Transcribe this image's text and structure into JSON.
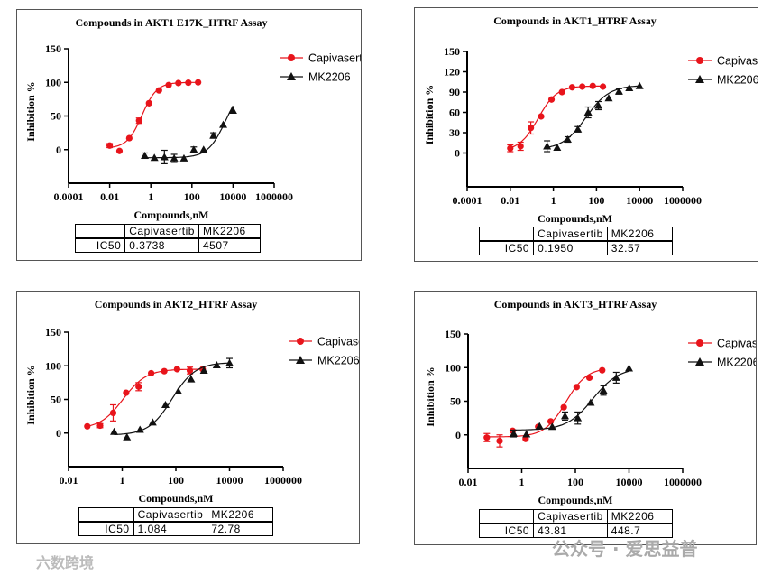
{
  "colors": {
    "capivasertib": "#e8141b",
    "mk2206": "#111111"
  },
  "watermarks": {
    "left": "六数跨境",
    "right": "公众号 · 爱思益普"
  },
  "chart_data": [
    {
      "type": "scatter",
      "title": "Compounds in AKT1 E17K_HTRF Assay",
      "xlabel": "Compounds,nM",
      "ylabel": "Inhibition %",
      "xscale": "log",
      "xlim": [
        0.0001,
        1000000
      ],
      "x_ticks": [
        "0.0001",
        "0.01",
        "1",
        "100",
        "10000",
        "1000000"
      ],
      "ylim": [
        -50,
        150
      ],
      "y_ticks": [
        "0",
        "50",
        "100",
        "150"
      ],
      "legend": "top-right",
      "series": [
        {
          "name": "Capivasertib",
          "marker": "circle",
          "x": [
            0.01,
            0.03,
            0.09,
            0.27,
            0.82,
            2.5,
            7.4,
            22,
            67,
            200
          ],
          "y": [
            6,
            -2,
            17,
            43,
            69,
            88,
            96,
            99,
            99.5,
            100
          ],
          "err": [
            3,
            1,
            2,
            4,
            2,
            2,
            1,
            1,
            1,
            1
          ],
          "fit": {
            "bottom": 2,
            "top": 100,
            "ic50": 0.3738,
            "hill": 1.2
          }
        },
        {
          "name": "MK2206",
          "marker": "triangle",
          "x": [
            0.51,
            1.5,
            4.6,
            13.7,
            41,
            123,
            370,
            1111,
            3333,
            10000
          ],
          "y": [
            -9,
            -12,
            -11,
            -13,
            -13,
            0,
            0,
            21,
            37,
            58
          ],
          "err": [
            4,
            2,
            10,
            6,
            2,
            4,
            2,
            4,
            2,
            2
          ],
          "fit": {
            "bottom": -12,
            "top": 100,
            "ic50": 4507,
            "hill": 1
          }
        }
      ],
      "table": {
        "headers": [
          "",
          "Capivasertib",
          "MK2206"
        ],
        "row_label": "IC50",
        "values": [
          "0.3738",
          "4507"
        ]
      }
    },
    {
      "type": "scatter",
      "title": "Compounds in AKT1_HTRF Assay",
      "xlabel": "Compounds,nM",
      "ylabel": "Inhibition %",
      "xscale": "log",
      "xlim": [
        0.0001,
        1000000
      ],
      "x_ticks": [
        "0.0001",
        "0.01",
        "1",
        "100",
        "10000",
        "1000000"
      ],
      "ylim": [
        -50,
        150
      ],
      "y_ticks": [
        "0",
        "30",
        "60",
        "90",
        "120",
        "150"
      ],
      "legend": "top-right",
      "series": [
        {
          "name": "Capivasertib",
          "marker": "circle",
          "x": [
            0.01,
            0.03,
            0.09,
            0.27,
            0.82,
            2.5,
            7.4,
            22,
            67,
            200
          ],
          "y": [
            7,
            10,
            37,
            54,
            79,
            90,
            97,
            98,
            99,
            98
          ],
          "err": [
            5,
            6,
            9,
            2,
            2,
            1,
            1,
            1,
            1,
            1
          ],
          "fit": {
            "bottom": 3,
            "top": 99,
            "ic50": 0.195,
            "hill": 1
          }
        },
        {
          "name": "MK2206",
          "marker": "triangle",
          "x": [
            0.51,
            1.5,
            4.6,
            13.7,
            41,
            123,
            370,
            1111,
            3333,
            10000
          ],
          "y": [
            10,
            8,
            20,
            35,
            60,
            70,
            81,
            91,
            96,
            99
          ],
          "err": [
            8,
            1,
            4,
            4,
            8,
            6,
            2,
            4,
            2,
            1
          ],
          "fit": {
            "bottom": 5,
            "top": 100,
            "ic50": 32.57,
            "hill": 0.8
          }
        }
      ],
      "table": {
        "headers": [
          "",
          "Capivasertib",
          "MK2206"
        ],
        "row_label": "IC50",
        "values": [
          "0.1950",
          "32.57"
        ]
      }
    },
    {
      "type": "scatter",
      "title": "Compounds in AKT2_HTRF Assay",
      "xlabel": "Compounds,nM",
      "ylabel": "Inhibition %",
      "xscale": "log",
      "xlim": [
        0.01,
        1000000
      ],
      "x_ticks": [
        "0.01",
        "1",
        "100",
        "10000",
        "1000000"
      ],
      "ylim": [
        -50,
        150
      ],
      "y_ticks": [
        "0",
        "50",
        "100",
        "150"
      ],
      "legend": "top-right",
      "series": [
        {
          "name": "Capivasertib",
          "marker": "circle",
          "x": [
            0.05,
            0.15,
            0.46,
            1.4,
            4.1,
            12,
            37,
            111,
            333,
            1000
          ],
          "y": [
            10,
            11,
            30,
            60,
            69,
            89,
            92,
            95,
            93,
            95
          ],
          "err": [
            1,
            3,
            12,
            2,
            6,
            1,
            1,
            1,
            5,
            1
          ],
          "fit": {
            "bottom": 6,
            "top": 95,
            "ic50": 1.084,
            "hill": 1
          }
        },
        {
          "name": "MK2206",
          "marker": "triangle",
          "x": [
            0.5,
            1.5,
            4.6,
            13.7,
            41,
            123,
            370,
            1111,
            3333,
            10000
          ],
          "y": [
            2,
            -6,
            5,
            16,
            42,
            62,
            80,
            93,
            101,
            104
          ],
          "err": [
            1,
            1,
            1,
            1,
            1,
            1,
            1,
            1,
            1,
            7
          ],
          "fit": {
            "bottom": -3,
            "top": 105,
            "ic50": 72.78,
            "hill": 1
          }
        }
      ],
      "table": {
        "headers": [
          "",
          "Capivasertib",
          "MK2206"
        ],
        "row_label": "IC50",
        "values": [
          "1.084",
          "72.78"
        ]
      }
    },
    {
      "type": "scatter",
      "title": "Compounds in AKT3_HTRF Assay",
      "xlabel": "Compounds,nM",
      "ylabel": "Inhibition %",
      "xscale": "log",
      "xlim": [
        0.01,
        1000000
      ],
      "x_ticks": [
        "0.01",
        "1",
        "100",
        "10000",
        "1000000"
      ],
      "ylim": [
        -50,
        150
      ],
      "y_ticks": [
        "0",
        "50",
        "100",
        "150"
      ],
      "legend": "top-right",
      "series": [
        {
          "name": "Capivasertib",
          "marker": "circle",
          "x": [
            0.05,
            0.15,
            0.46,
            1.4,
            4.1,
            12,
            37,
            111,
            333,
            1000
          ],
          "y": [
            -4,
            -9,
            6,
            -6,
            12,
            20,
            41,
            71,
            85,
            96
          ],
          "err": [
            6,
            9,
            2,
            1,
            2,
            1,
            1,
            1,
            1,
            1
          ],
          "fit": {
            "bottom": -3,
            "top": 100,
            "ic50": 43.81,
            "hill": 1.1
          }
        },
        {
          "name": "MK2206",
          "marker": "triangle",
          "x": [
            0.5,
            1.5,
            4.6,
            13.7,
            41,
            123,
            370,
            1111,
            3333,
            10000
          ],
          "y": [
            2,
            1,
            13,
            12,
            28,
            25,
            48,
            66,
            85,
            99
          ],
          "err": [
            5,
            1,
            2,
            1,
            6,
            9,
            1,
            7,
            8,
            1
          ],
          "fit": {
            "bottom": 7,
            "top": 100,
            "ic50": 448.7,
            "hill": 0.9
          }
        }
      ],
      "table": {
        "headers": [
          "",
          "Capivasertib",
          "MK2206"
        ],
        "row_label": "IC50",
        "values": [
          "43.81",
          "448.7"
        ]
      }
    }
  ]
}
